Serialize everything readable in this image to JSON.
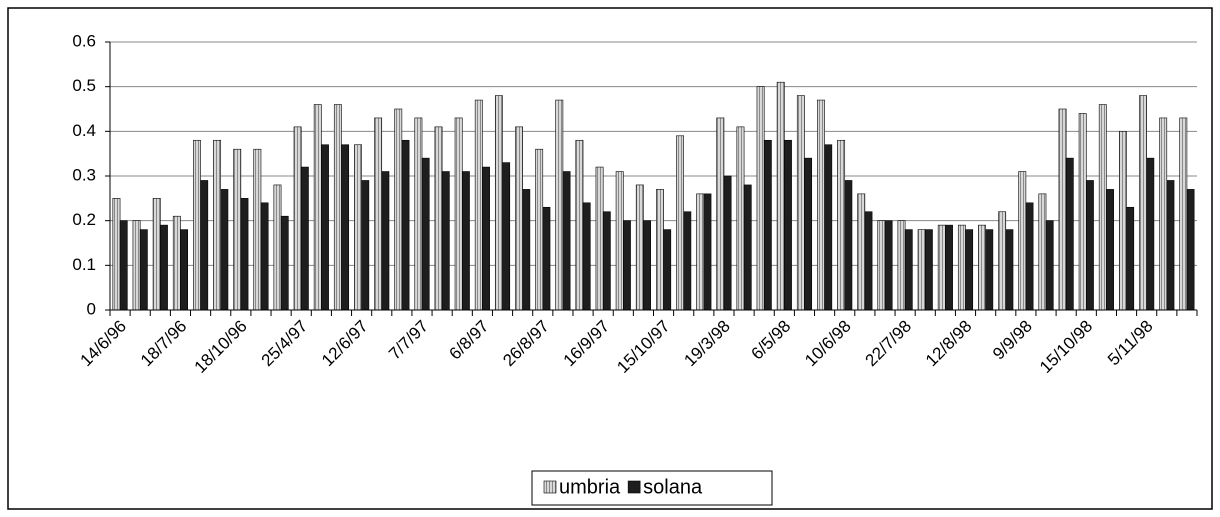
{
  "chart_data": {
    "type": "bar",
    "categories": [
      "14/6/96",
      null,
      null,
      "18/7/96",
      null,
      null,
      "18/10/96",
      null,
      null,
      "25/4/97",
      null,
      null,
      "12/6/97",
      null,
      null,
      "7/7/97",
      null,
      null,
      "6/8/97",
      null,
      null,
      "26/8/97",
      null,
      null,
      "16/9/97",
      null,
      null,
      "15/10/97",
      null,
      null,
      "19/3/98",
      null,
      null,
      "6/5/98",
      null,
      null,
      "10/6/98",
      null,
      null,
      "22/7/98",
      null,
      null,
      "12/8/98",
      null,
      null,
      "9/9/98",
      null,
      null,
      "15/10/98",
      null,
      null,
      "5/11/98",
      null,
      null
    ],
    "series": [
      {
        "name": "umbria",
        "color": "#b8b8b8",
        "values": [
          0.25,
          0.2,
          0.25,
          0.21,
          0.38,
          0.38,
          0.36,
          0.36,
          0.28,
          0.41,
          0.46,
          0.46,
          0.37,
          0.43,
          0.45,
          0.43,
          0.41,
          0.43,
          0.47,
          0.48,
          0.41,
          0.36,
          0.47,
          0.38,
          0.32,
          0.31,
          0.28,
          0.27,
          0.39,
          0.26,
          0.43,
          0.41,
          0.5,
          0.51,
          0.48,
          0.47,
          0.38,
          0.26,
          0.2,
          0.2,
          0.18,
          0.19,
          0.19,
          0.19,
          0.22,
          0.31,
          0.26,
          0.45,
          0.44,
          0.46,
          0.4,
          0.48,
          0.43,
          0.43
        ]
      },
      {
        "name": "solana",
        "color": "#1e1e1e",
        "values": [
          0.2,
          0.18,
          0.19,
          0.18,
          0.29,
          0.27,
          0.25,
          0.24,
          0.21,
          0.32,
          0.37,
          0.37,
          0.29,
          0.31,
          0.38,
          0.34,
          0.31,
          0.31,
          0.32,
          0.33,
          0.27,
          0.23,
          0.31,
          0.24,
          0.22,
          0.2,
          0.2,
          0.18,
          0.22,
          0.26,
          0.3,
          0.28,
          0.38,
          0.38,
          0.34,
          0.37,
          0.29,
          0.22,
          0.2,
          0.18,
          0.18,
          0.19,
          0.18,
          0.18,
          0.18,
          0.24,
          0.2,
          0.34,
          0.29,
          0.27,
          0.23,
          0.34,
          0.29,
          0.27
        ]
      }
    ],
    "ylim": [
      0,
      0.6
    ],
    "yticks": [
      0,
      0.1,
      0.2,
      0.3,
      0.4,
      0.5,
      0.6
    ],
    "grid": true,
    "legend": "bottom"
  }
}
